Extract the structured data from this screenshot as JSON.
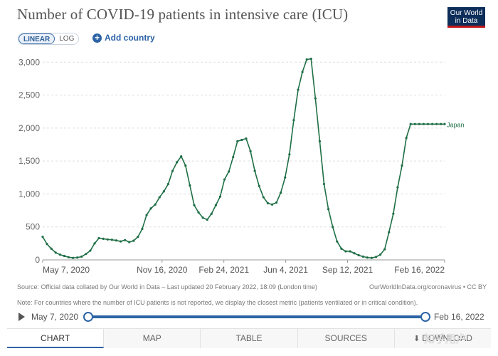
{
  "header": {
    "title": "Number of COVID-19 patients in intensive care (ICU)",
    "logo_line1": "Our World",
    "logo_line2": "in Data"
  },
  "controls": {
    "linear_label": "LINEAR",
    "log_label": "LOG",
    "add_country_label": "Add country"
  },
  "chart_data": {
    "type": "line",
    "title": "Number of COVID-19 patients in intensive care (ICU)",
    "xlabel": "",
    "ylabel": "",
    "x_ticks": [
      "May 7, 2020",
      "Nov 16, 2020",
      "Feb 24, 2021",
      "Jun 4, 2021",
      "Sep 12, 2021",
      "Feb 16, 2022"
    ],
    "y_ticks": [
      0,
      500,
      1000,
      1500,
      2000,
      2500,
      3000
    ],
    "y_tick_labels": [
      "0",
      "500",
      "1,000",
      "1,500",
      "2,000",
      "2,500",
      "3,000"
    ],
    "ylim": [
      0,
      3100
    ],
    "xlim": [
      "2020-05-07",
      "2022-02-16"
    ],
    "grid": true,
    "series": [
      {
        "name": "Japan",
        "color": "#1f6f46",
        "x": [
          "2020-05-07",
          "2020-05-14",
          "2020-05-21",
          "2020-05-28",
          "2020-06-04",
          "2020-06-11",
          "2020-06-18",
          "2020-06-25",
          "2020-07-02",
          "2020-07-09",
          "2020-07-16",
          "2020-07-23",
          "2020-07-30",
          "2020-08-06",
          "2020-08-13",
          "2020-08-20",
          "2020-08-27",
          "2020-09-03",
          "2020-09-10",
          "2020-09-17",
          "2020-09-24",
          "2020-10-01",
          "2020-10-08",
          "2020-10-15",
          "2020-10-22",
          "2020-10-29",
          "2020-11-05",
          "2020-11-12",
          "2020-11-19",
          "2020-11-26",
          "2020-12-03",
          "2020-12-10",
          "2020-12-17",
          "2020-12-24",
          "2020-12-31",
          "2021-01-07",
          "2021-01-14",
          "2021-01-21",
          "2021-01-28",
          "2021-02-04",
          "2021-02-11",
          "2021-02-18",
          "2021-02-25",
          "2021-03-04",
          "2021-03-11",
          "2021-03-18",
          "2021-03-25",
          "2021-04-01",
          "2021-04-08",
          "2021-04-15",
          "2021-04-22",
          "2021-04-29",
          "2021-05-06",
          "2021-05-13",
          "2021-05-20",
          "2021-05-27",
          "2021-06-03",
          "2021-06-10",
          "2021-06-17",
          "2021-06-24",
          "2021-07-01",
          "2021-07-08",
          "2021-07-15",
          "2021-07-22",
          "2021-07-29",
          "2021-08-05",
          "2021-08-12",
          "2021-08-19",
          "2021-08-26",
          "2021-09-02",
          "2021-09-09",
          "2021-09-16",
          "2021-09-23",
          "2021-09-30",
          "2021-10-07",
          "2021-10-14",
          "2021-10-21",
          "2021-10-28",
          "2021-11-04",
          "2021-11-11",
          "2021-11-18",
          "2021-11-25",
          "2021-12-02",
          "2021-12-09",
          "2021-12-16",
          "2021-12-23",
          "2021-12-30",
          "2022-01-06",
          "2022-01-13",
          "2022-01-20",
          "2022-01-27",
          "2022-02-03",
          "2022-02-10",
          "2022-02-16"
        ],
        "values": [
          350,
          240,
          170,
          110,
          80,
          60,
          40,
          30,
          35,
          50,
          90,
          140,
          250,
          330,
          320,
          310,
          305,
          295,
          280,
          300,
          270,
          290,
          350,
          470,
          680,
          780,
          840,
          950,
          1040,
          1150,
          1350,
          1480,
          1570,
          1430,
          1130,
          830,
          720,
          640,
          610,
          700,
          830,
          960,
          1220,
          1340,
          1560,
          1800,
          1820,
          1840,
          1650,
          1350,
          1120,
          950,
          860,
          840,
          870,
          1020,
          1250,
          1600,
          2120,
          2580,
          2850,
          3040,
          3050,
          2450,
          1800,
          1150,
          770,
          500,
          280,
          170,
          130,
          130,
          100,
          70,
          50,
          35,
          30,
          45,
          80,
          160,
          420,
          700,
          1100,
          1430,
          1850,
          2060,
          2060,
          2060,
          2060,
          2060,
          2060,
          2060,
          2060,
          2060
        ],
        "end_label": "Japan"
      }
    ]
  },
  "footer": {
    "source": "Source: Official data collated by Our World in Data – Last updated 20 February 2022, 18:09 (London time)",
    "source_url": "OurWorldInData.org/coronavirus • CC BY",
    "note": "Note: For countries where the number of ICU patients is not reported, we display the closest metric (patients ventilated or in critical condition)."
  },
  "timeline": {
    "start": "May 7, 2020",
    "end": "Feb 16, 2022"
  },
  "tabs": [
    "CHART",
    "MAP",
    "TABLE",
    "SOURCES",
    "DOWNLOAD"
  ],
  "watermark": "知乎用户"
}
